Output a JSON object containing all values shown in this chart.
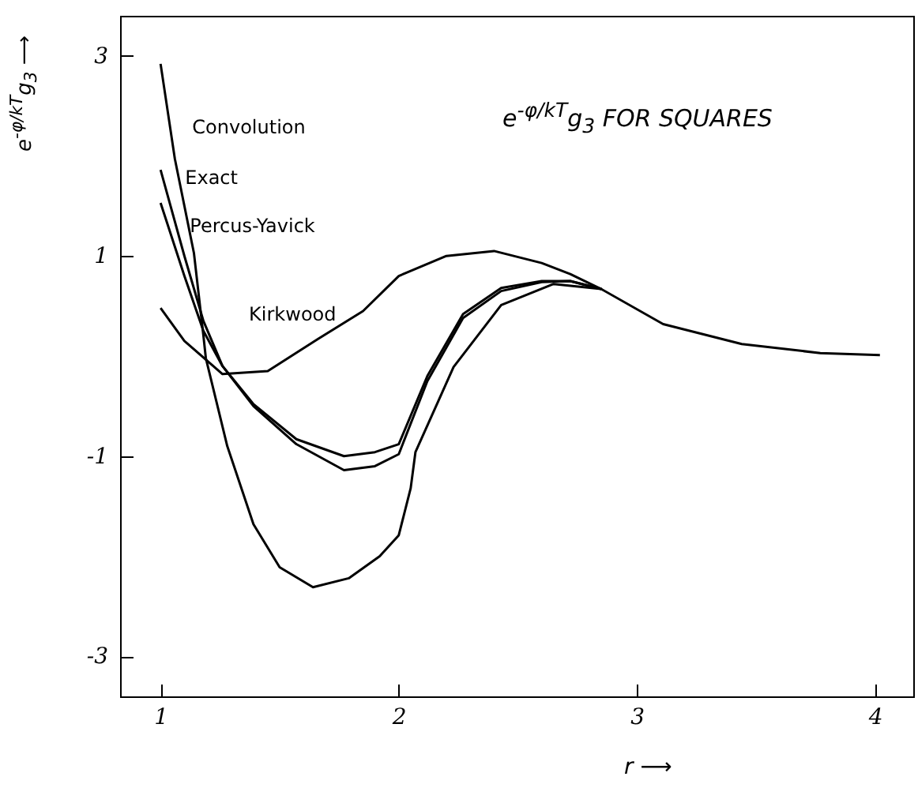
{
  "chart_data": {
    "type": "line",
    "title": "e$^{-φ/kT}$g$_{3}$   FOR SQUARES",
    "xlabel": "r ⟶",
    "ylabel": "e$^{-φ/kT}$g$_{3}$ ⟶",
    "xlim": [
      0.83,
      4.16
    ],
    "ylim": [
      -3.4,
      3.4
    ],
    "xticks": [
      1,
      2,
      3,
      4
    ],
    "yticks": [
      -3,
      -1,
      1,
      3
    ],
    "grid": false,
    "marker": "none",
    "line_style": "solid",
    "series": [
      {
        "color": "#000000",
        "x": [
          1.0,
          1.06,
          1.14,
          1.18,
          1.19,
          1.28,
          1.39,
          1.5,
          1.64,
          1.79,
          1.92,
          2.0,
          2.05,
          2.07,
          2.23,
          2.43,
          2.65,
          2.85,
          3.11,
          3.44,
          3.77,
          4.02
        ],
        "values": [
          2.92,
          1.97,
          1.03,
          0.2,
          -0.02,
          -0.9,
          -1.68,
          -2.11,
          -2.31,
          -2.22,
          -2.0,
          -1.79,
          -1.32,
          -0.96,
          -0.11,
          0.51,
          0.72,
          0.67,
          0.32,
          0.12,
          0.03,
          0.01
        ]
      },
      {
        "color": "#000000",
        "x": [
          1.0,
          1.1,
          1.18,
          1.26,
          1.39,
          1.57,
          1.77,
          1.9,
          2.0,
          2.12,
          2.27,
          2.43,
          2.6,
          2.72,
          2.85
        ],
        "values": [
          1.86,
          1.0,
          0.35,
          -0.1,
          -0.5,
          -0.88,
          -1.14,
          -1.1,
          -0.98,
          -0.25,
          0.38,
          0.65,
          0.74,
          0.75,
          0.67
        ]
      },
      {
        "color": "#000000",
        "x": [
          1.0,
          1.1,
          1.18,
          1.26,
          1.39,
          1.57,
          1.77,
          1.9,
          2.0,
          2.12,
          2.27,
          2.43,
          2.6,
          2.72,
          2.85
        ],
        "values": [
          1.53,
          0.8,
          0.25,
          -0.1,
          -0.48,
          -0.83,
          -1.0,
          -0.96,
          -0.88,
          -0.2,
          0.42,
          0.68,
          0.75,
          0.75,
          0.67
        ]
      },
      {
        "color": "#000000",
        "x": [
          1.0,
          1.1,
          1.26,
          1.45,
          1.66,
          1.85,
          2.0,
          2.2,
          2.4,
          2.6,
          2.72,
          2.85
        ],
        "values": [
          0.48,
          0.15,
          -0.18,
          -0.15,
          0.17,
          0.45,
          0.8,
          1.0,
          1.05,
          0.93,
          0.82,
          0.67
        ]
      }
    ],
    "annotations": [
      {
        "text": "Convolution",
        "x": 1.04,
        "y": 2.29
      },
      {
        "text": "Exact",
        "x": 1.01,
        "y": 1.78
      },
      {
        "text": "Percus-Yavick",
        "x": 1.03,
        "y": 1.3
      },
      {
        "text": "Kirkwood",
        "x": 1.83,
        "y": 0.42
      }
    ]
  }
}
